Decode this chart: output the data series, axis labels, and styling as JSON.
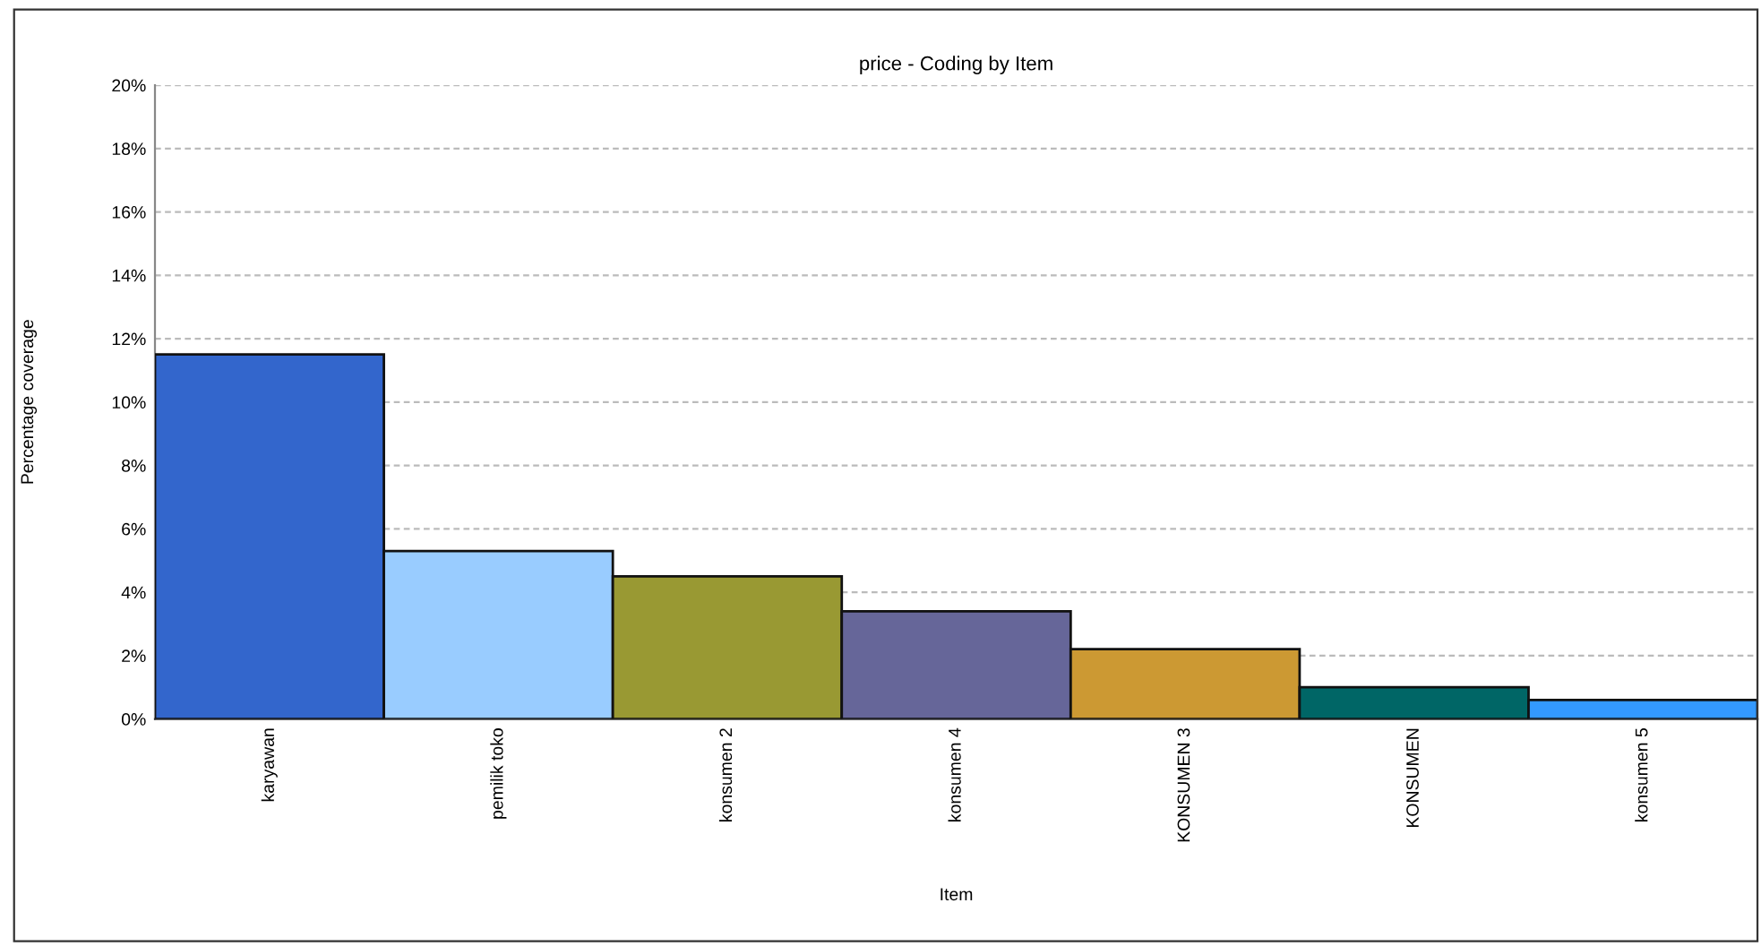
{
  "chart_data": {
    "type": "bar",
    "title": "price - Coding by Item",
    "xlabel": "Item",
    "ylabel": "Percentage coverage",
    "categories": [
      "karyawan",
      "pemilik toko",
      "konsumen 2",
      "konsumen 4",
      "KONSUMEN 3",
      "KONSUMEN",
      "konsumen 5"
    ],
    "values": [
      11.5,
      5.3,
      4.5,
      3.4,
      2.2,
      1.0,
      0.6
    ],
    "colors": [
      "#3366cc",
      "#99ccff",
      "#999933",
      "#666699",
      "#cc9933",
      "#006666",
      "#3399ff"
    ],
    "ylim": [
      0,
      20
    ],
    "yticks": [
      {
        "value": 0,
        "label": "0%"
      },
      {
        "value": 2,
        "label": "2%"
      },
      {
        "value": 4,
        "label": "4%"
      },
      {
        "value": 6,
        "label": "6%"
      },
      {
        "value": 8,
        "label": "8%"
      },
      {
        "value": 10,
        "label": "10%"
      },
      {
        "value": 12,
        "label": "12%"
      },
      {
        "value": 14,
        "label": "14%"
      },
      {
        "value": 16,
        "label": "16%"
      },
      {
        "value": 18,
        "label": "18%"
      },
      {
        "value": 20,
        "label": "20%"
      }
    ],
    "grid": "y",
    "legend": false
  }
}
